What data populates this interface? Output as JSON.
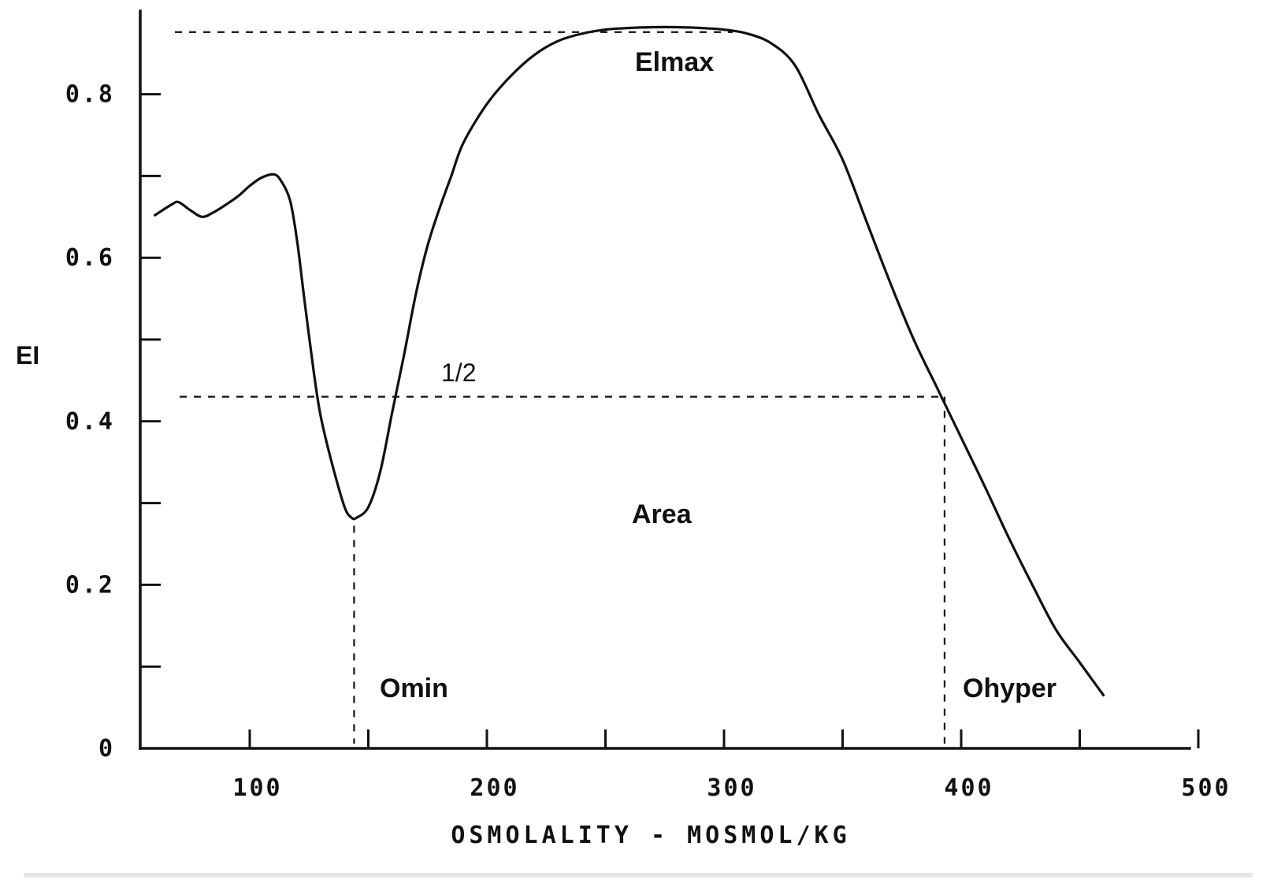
{
  "chart_data": {
    "type": "line",
    "title": "",
    "xlabel": "OSMOLALITY - MOSMOL/KG",
    "ylabel": "EI",
    "xlim": [
      50,
      500
    ],
    "ylim": [
      0,
      0.9
    ],
    "x_ticks": [
      100,
      150,
      200,
      250,
      300,
      350,
      400,
      450,
      500
    ],
    "x_tick_labels": [
      "100",
      "",
      "200",
      "",
      "300",
      "",
      "400",
      "",
      "500"
    ],
    "y_ticks": [
      0,
      0.1,
      0.2,
      0.3,
      0.4,
      0.5,
      0.6,
      0.7,
      0.8
    ],
    "y_tick_labels": [
      "0",
      "",
      "0.2",
      "",
      "0.4",
      "",
      "0.6",
      "",
      "0.8"
    ],
    "grid": false,
    "series": [
      {
        "x": [
          60,
          67,
          70,
          75,
          80,
          85,
          90,
          95,
          100,
          105,
          110,
          113,
          117,
          120,
          123,
          127,
          130,
          135,
          140,
          143,
          145,
          150,
          155,
          160,
          165,
          170,
          175,
          180,
          185,
          190,
          200,
          210,
          220,
          230,
          240,
          250,
          260,
          270,
          280,
          290,
          300,
          310,
          320,
          330,
          340,
          350,
          360,
          370,
          380,
          390,
          395,
          400,
          410,
          420,
          430,
          440,
          450,
          460
        ],
        "y": [
          0.652,
          0.665,
          0.668,
          0.658,
          0.65,
          0.656,
          0.665,
          0.675,
          0.688,
          0.698,
          0.702,
          0.695,
          0.67,
          0.62,
          0.55,
          0.46,
          0.405,
          0.345,
          0.295,
          0.282,
          0.282,
          0.295,
          0.338,
          0.41,
          0.48,
          0.555,
          0.615,
          0.66,
          0.7,
          0.74,
          0.788,
          0.822,
          0.848,
          0.865,
          0.874,
          0.879,
          0.881,
          0.882,
          0.882,
          0.881,
          0.879,
          0.874,
          0.862,
          0.835,
          0.775,
          0.72,
          0.645,
          0.57,
          0.5,
          0.44,
          0.41,
          0.38,
          0.32,
          0.258,
          0.2,
          0.145,
          0.105,
          0.065
        ]
      }
    ],
    "reference_lines": {
      "elmax_y": 0.875,
      "half_y": 0.43,
      "omin_x": 145,
      "ohyper_x": 393
    },
    "annotations": [
      "Elmax",
      "1/2",
      "Area",
      "Omin",
      "Ohyper"
    ],
    "line_color": "#111111"
  }
}
